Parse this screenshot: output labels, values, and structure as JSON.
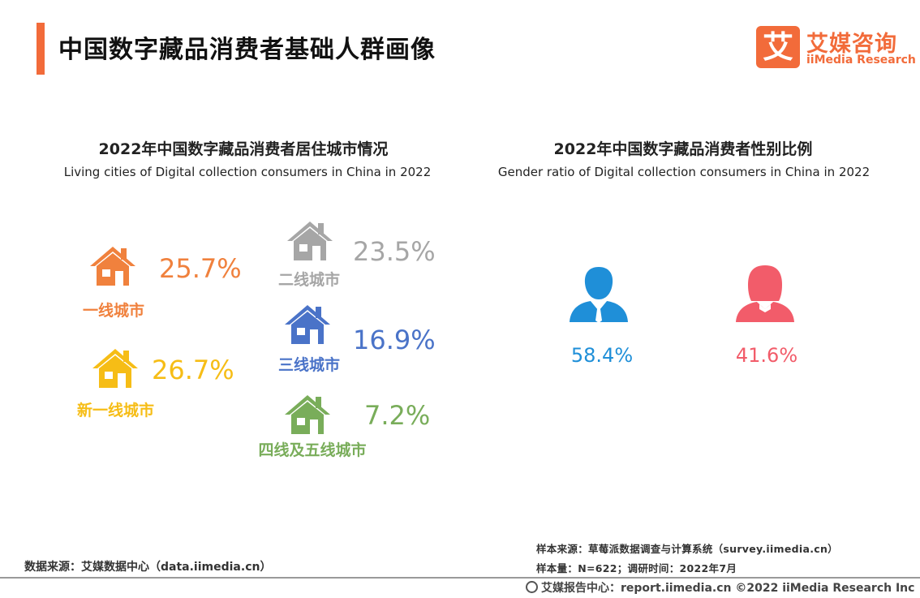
{
  "header": {
    "title": "中国数字藏品消费者基础人群画像",
    "logo_mark": "艾",
    "logo_cn": "艾媒咨询",
    "logo_en": "iiMedia Research"
  },
  "colors": {
    "accent": "#f26b3a",
    "tier1": "#f0813d",
    "new_tier1": "#f6bd16",
    "tier2": "#a6a6a6",
    "tier3": "#4a73c8",
    "tier4_5": "#79ad5a",
    "male": "#1f8fd8",
    "female": "#f25c6a"
  },
  "chart_data": [
    {
      "type": "table",
      "title": "2022年中国数字藏品消费者居住城市情况",
      "subtitle": "Living cities of Digital collection consumers in China in 2022",
      "categories": [
        "一线城市",
        "新一线城市",
        "二线城市",
        "三线城市",
        "四线及五线城市"
      ],
      "values": [
        25.7,
        26.7,
        23.5,
        16.9,
        7.2
      ],
      "value_labels": [
        "25.7%",
        "26.7%",
        "23.5%",
        "16.9%",
        "7.2%"
      ],
      "icons": [
        "house-icon",
        "house-icon",
        "house-icon",
        "house-icon",
        "house-icon"
      ],
      "unit": "%"
    },
    {
      "type": "table",
      "title": "2022年中国数字藏品消费者性别比例",
      "subtitle": "Gender ratio of Digital collection consumers in China in 2022",
      "categories": [
        "male",
        "female"
      ],
      "values": [
        58.4,
        41.6
      ],
      "value_labels": [
        "58.4%",
        "41.6%"
      ],
      "icons": [
        "male-person-icon",
        "female-person-icon"
      ],
      "unit": "%"
    }
  ],
  "footer": {
    "source_left": "数据来源：艾媒数据中心（data.iimedia.cn）",
    "sample_source": "样本来源：草莓派数据调查与计算系统（survey.iimedia.cn）",
    "sample_size": "样本量：N=622；调研时间：2022年7月",
    "copyright": "艾媒报告中心：report.iimedia.cn  ©2022  iiMedia Research  Inc"
  }
}
